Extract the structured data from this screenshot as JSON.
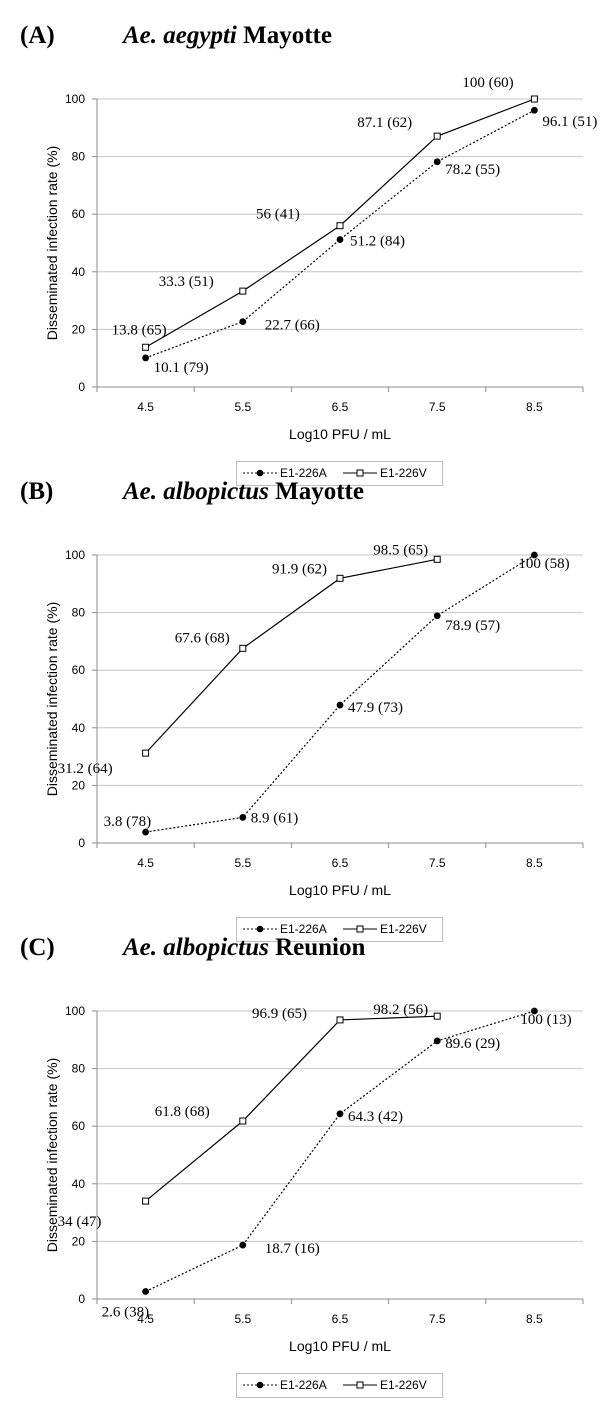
{
  "panels": [
    {
      "letter": "(A)",
      "species": "Ae. aegypti",
      "location": "Mayotte"
    },
    {
      "letter": "(B)",
      "species": "Ae. albopictus",
      "location": "Mayotte"
    },
    {
      "letter": "(C)",
      "species": "Ae. albopictus",
      "location": "Reunion"
    }
  ],
  "chart_data": [
    {
      "type": "line",
      "xlabel": "Log10 PFU / mL",
      "ylabel": "Disseminated infection rate (%)",
      "categories": [
        "4.5",
        "5.5",
        "6.5",
        "7.5",
        "8.5"
      ],
      "ylim": [
        0,
        100
      ],
      "yticks": [
        0,
        20,
        40,
        60,
        80,
        100
      ],
      "grid": true,
      "legend": "bottom",
      "series": [
        {
          "name": "E1-226A",
          "style": "dotted",
          "marker": "filled-circle",
          "values": [
            10.1,
            22.7,
            51.2,
            78.2,
            96.1
          ],
          "labels": [
            "10.1 (79)",
            "22.7 (66)",
            "51.2 (84)",
            "78.2 (55)",
            "96.1 (51)"
          ]
        },
        {
          "name": "E1-226V",
          "style": "solid",
          "marker": "open-square",
          "values": [
            13.8,
            33.3,
            56,
            87.1,
            100
          ],
          "labels": [
            "13.8 (65)",
            "33.3 (51)",
            "56 (41)",
            "87.1 (62)",
            "100 (60)"
          ]
        }
      ]
    },
    {
      "type": "line",
      "xlabel": "Log10 PFU / mL",
      "ylabel": "Disseminated infection rate (%)",
      "categories": [
        "4.5",
        "5.5",
        "6.5",
        "7.5",
        "8.5"
      ],
      "ylim": [
        0,
        100
      ],
      "yticks": [
        0,
        20,
        40,
        60,
        80,
        100
      ],
      "grid": true,
      "legend": "bottom",
      "series": [
        {
          "name": "E1-226A",
          "style": "dotted",
          "marker": "filled-circle",
          "values": [
            3.8,
            8.9,
            47.9,
            78.9,
            100
          ],
          "labels": [
            "3.8 (78)",
            "8.9 (61)",
            "47.9 (73)",
            "78.9 (57)",
            "100 (58)"
          ]
        },
        {
          "name": "E1-226V",
          "style": "solid",
          "marker": "open-square",
          "values": [
            31.2,
            67.6,
            91.9,
            98.5,
            null
          ],
          "labels": [
            "31.2 (64)",
            "67.6 (68)",
            "91.9 (62)",
            "98.5 (65)",
            null
          ]
        }
      ]
    },
    {
      "type": "line",
      "xlabel": "Log10 PFU / mL",
      "ylabel": "Disseminated infection rate (%)",
      "categories": [
        "4.5",
        "5.5",
        "6.5",
        "7.5",
        "8.5"
      ],
      "ylim": [
        0,
        100
      ],
      "yticks": [
        0,
        20,
        40,
        60,
        80,
        100
      ],
      "grid": true,
      "legend": "bottom",
      "series": [
        {
          "name": "E1-226A",
          "style": "dotted",
          "marker": "filled-circle",
          "values": [
            2.6,
            18.7,
            64.3,
            89.6,
            100
          ],
          "labels": [
            "2.6 (38)",
            "18.7 (16)",
            "64.3 (42)",
            "89.6 (29)",
            "100 (13)"
          ]
        },
        {
          "name": "E1-226V",
          "style": "solid",
          "marker": "open-square",
          "values": [
            34,
            61.8,
            96.9,
            98.2,
            null
          ],
          "labels": [
            "34 (47)",
            "61.8 (68)",
            "96.9 (65)",
            "98.2 (56)",
            null
          ]
        }
      ]
    }
  ]
}
